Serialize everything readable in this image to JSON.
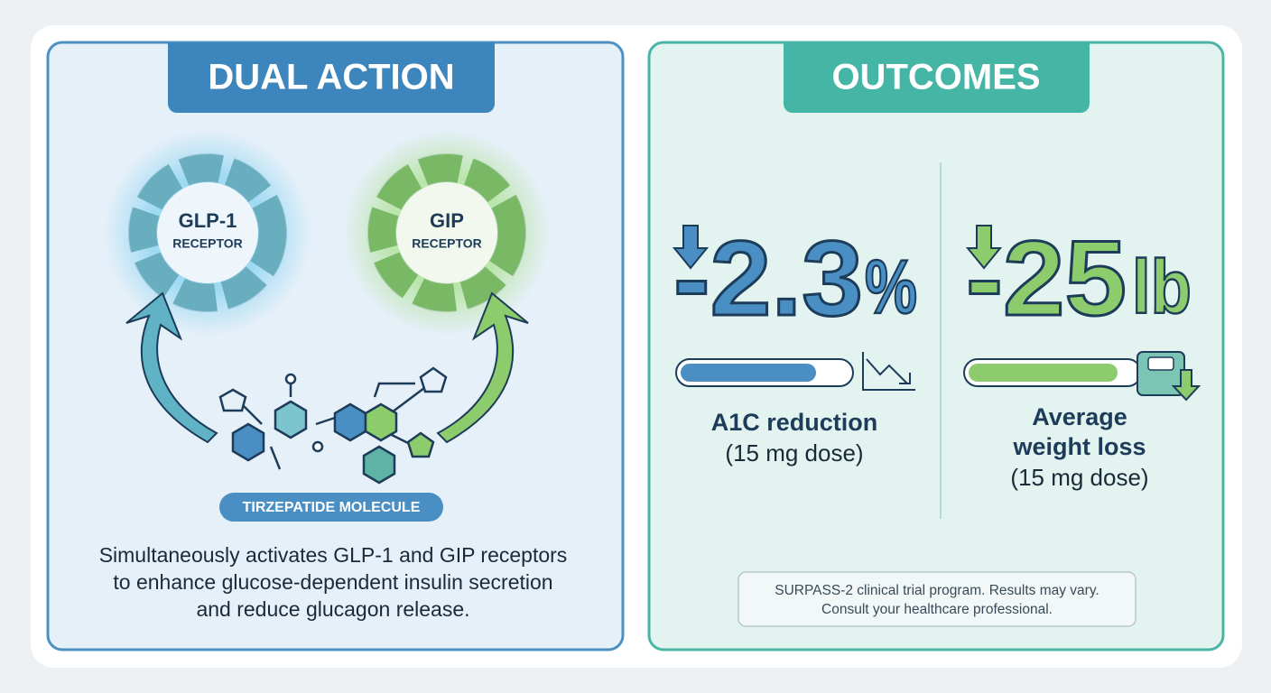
{
  "left_panel": {
    "title": "DUAL ACTION",
    "receptors": [
      {
        "name": "GLP-1",
        "label": "RECEPTOR"
      },
      {
        "name": "GIP",
        "label": "RECEPTOR"
      }
    ],
    "molecule_label": "TIRZEPATIDE MOLECULE",
    "description": [
      "Simultaneously activates GLP-1 and GIP receptors",
      "to enhance glucose-dependent insulin secretion",
      "and reduce glucagon release."
    ]
  },
  "right_panel": {
    "title": "OUTCOMES",
    "metrics": [
      {
        "value": "-2.3",
        "unit": "%",
        "label": [
          "A1C reduction"
        ],
        "note": "(15 mg dose)"
      },
      {
        "value": "-25",
        "unit": "lb",
        "label": [
          "Average",
          "weight loss"
        ],
        "note": "(15 mg dose)"
      }
    ],
    "footnote": [
      "SURPASS-2 clinical trial program. Results may vary.",
      "Consult your healthcare professional."
    ]
  }
}
